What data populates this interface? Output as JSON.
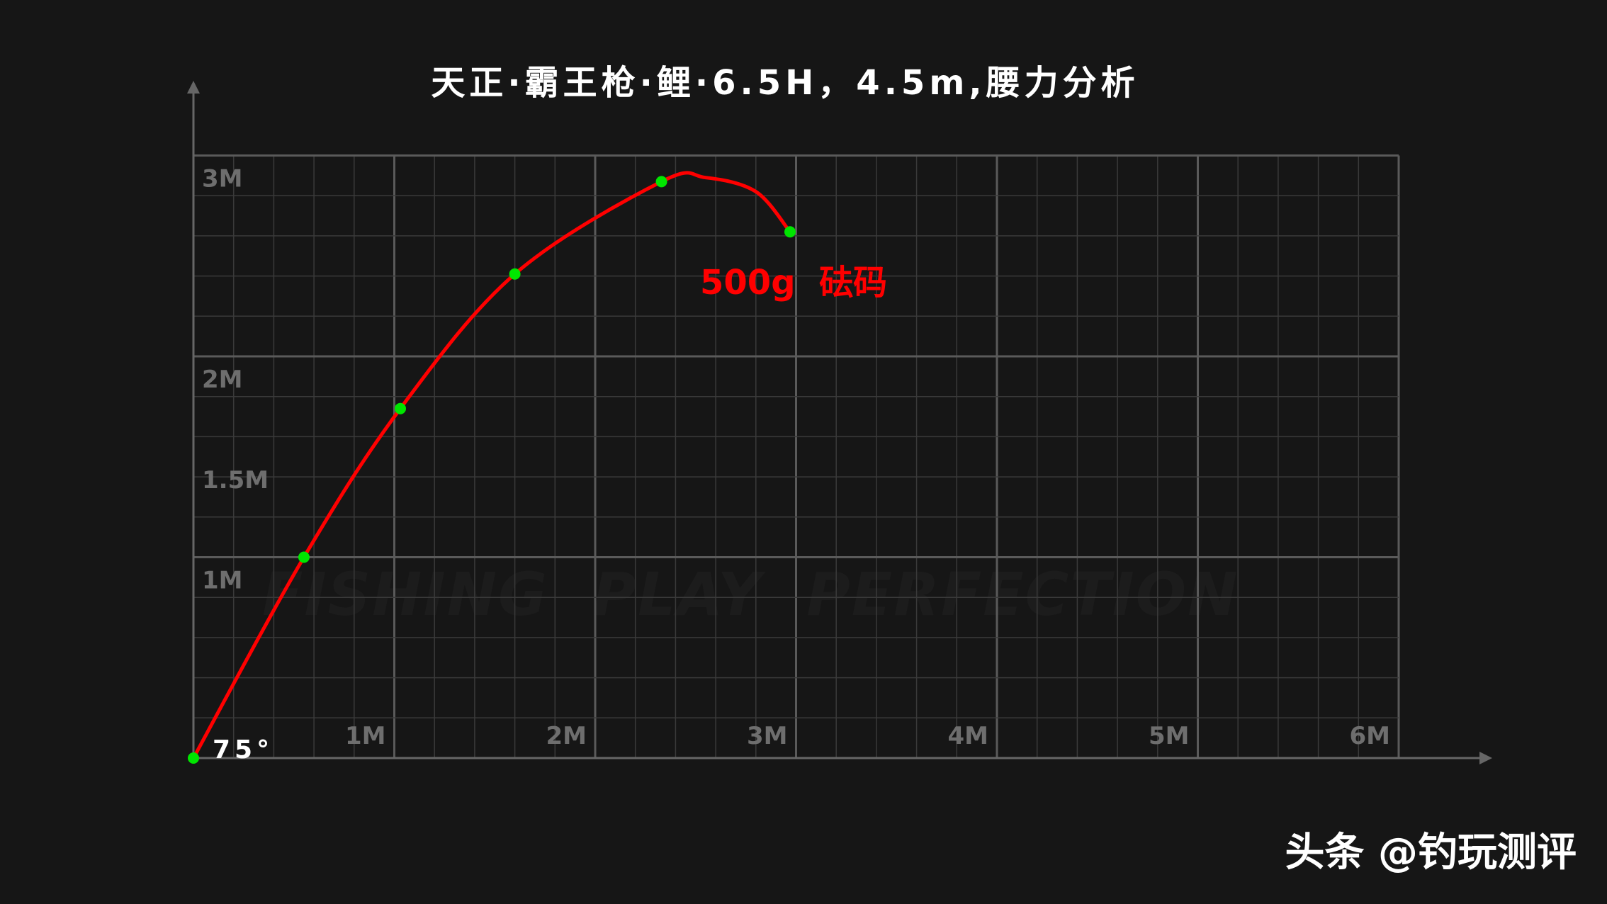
{
  "chart_data": {
    "type": "line",
    "title": "天正·霸王枪·鲤·6.5H，4.5m,腰力分析",
    "xlim": [
      0,
      6
    ],
    "ylim": [
      0,
      3
    ],
    "x_ticks": [
      {
        "value": 1,
        "label": "1M"
      },
      {
        "value": 2,
        "label": "2M"
      },
      {
        "value": 3,
        "label": "3M"
      },
      {
        "value": 4,
        "label": "4M"
      },
      {
        "value": 5,
        "label": "5M"
      },
      {
        "value": 6,
        "label": "6M"
      }
    ],
    "y_ticks": [
      {
        "value": 1,
        "label": "1M"
      },
      {
        "value": 1.5,
        "label": "1.5M"
      },
      {
        "value": 2,
        "label": "2M"
      },
      {
        "value": 3,
        "label": "3M"
      }
    ],
    "grid": true,
    "minor_grid_step": 0.2,
    "series": [
      {
        "color": "#ff0000",
        "marker_color": "#00e600",
        "points": [
          {
            "x": 0,
            "y": 0
          },
          {
            "x": 0.55,
            "y": 1.0
          },
          {
            "x": 1.03,
            "y": 1.74
          },
          {
            "x": 1.6,
            "y": 2.41
          },
          {
            "x": 2.33,
            "y": 2.87
          },
          {
            "x": 2.97,
            "y": 2.62
          }
        ],
        "curve": [
          {
            "x": 0,
            "y": 0
          },
          {
            "x": 0.55,
            "y": 1.0
          },
          {
            "x": 1.03,
            "y": 1.74
          },
          {
            "x": 1.6,
            "y": 2.41
          },
          {
            "x": 2.33,
            "y": 2.87
          },
          {
            "x": 2.55,
            "y": 2.89
          },
          {
            "x": 2.8,
            "y": 2.82
          },
          {
            "x": 2.97,
            "y": 2.62
          }
        ]
      }
    ],
    "annotations": {
      "angle": "75°",
      "weight": "500g  砝码"
    },
    "watermark": "FISHING  PLAY  PERFECTION",
    "credit": "头条 @钓玩测评"
  }
}
